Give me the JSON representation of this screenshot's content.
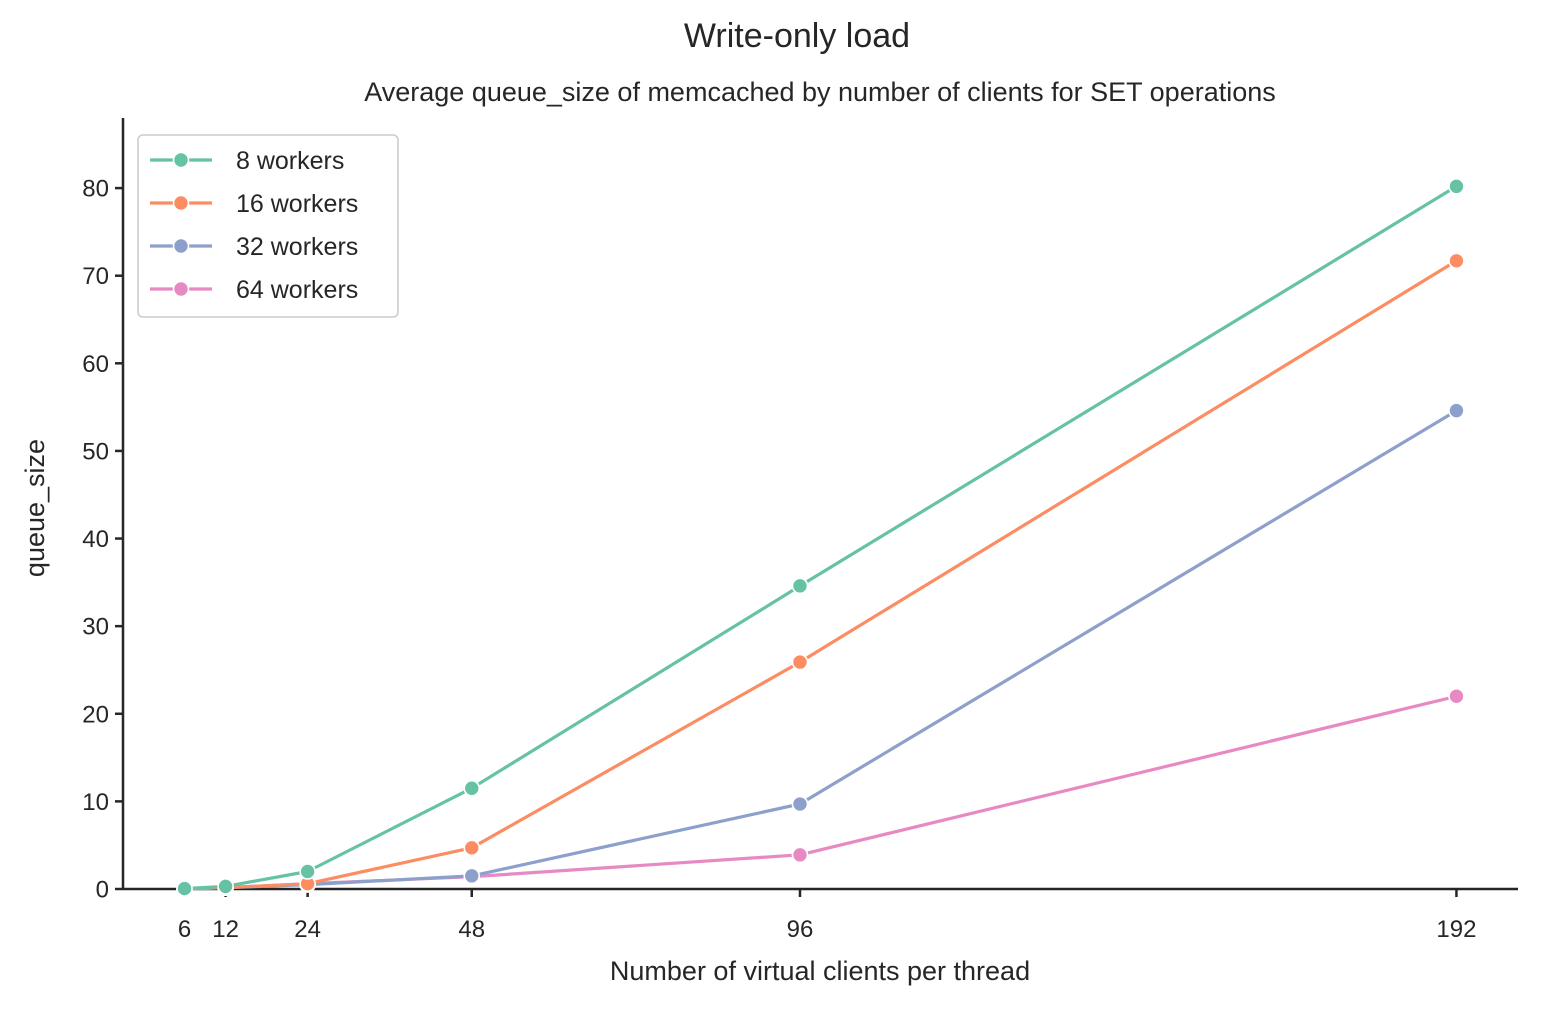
{
  "chart_data": {
    "type": "line",
    "suptitle": "Write-only load",
    "title": "Average queue_size of memcached by number of clients for SET operations",
    "xlabel": "Number of virtual clients per thread",
    "ylabel": "queue_size",
    "x": [
      6,
      12,
      24,
      48,
      96,
      192
    ],
    "xticks": [
      "6",
      "12",
      "24",
      "48",
      "96",
      "192"
    ],
    "xlim": [
      -3,
      201
    ],
    "ylim": [
      0,
      88
    ],
    "yticks": [
      "0",
      "10",
      "20",
      "30",
      "40",
      "50",
      "60",
      "70",
      "80"
    ],
    "grid": false,
    "legend_position": "top-left",
    "series": [
      {
        "name": "8 workers",
        "color": "#66c2a5",
        "values": [
          0.05,
          0.3,
          2.0,
          11.5,
          34.6,
          80.2
        ]
      },
      {
        "name": "16 workers",
        "color": "#fc8d62",
        "values": [
          0.02,
          0.15,
          0.6,
          4.7,
          25.9,
          71.7
        ]
      },
      {
        "name": "32 workers",
        "color": "#8da0cb",
        "values": [
          0.02,
          0.15,
          0.5,
          1.5,
          9.7,
          54.6
        ]
      },
      {
        "name": "64 workers",
        "color": "#e78ac3",
        "values": [
          0.02,
          0.15,
          0.6,
          1.4,
          3.9,
          22.0
        ]
      }
    ]
  }
}
